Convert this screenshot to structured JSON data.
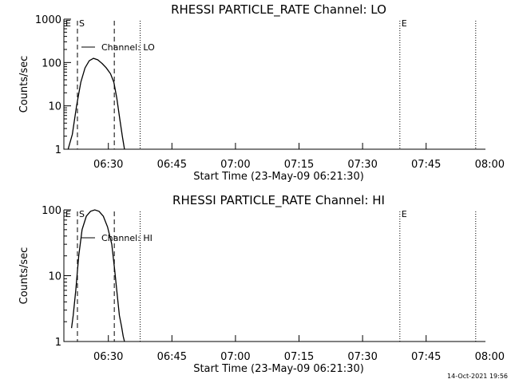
{
  "footer_timestamp": "14-Oct-2021 19:56",
  "colors": {
    "background": "#ffffff",
    "foreground": "#000000"
  },
  "chart_data": [
    {
      "type": "line",
      "title": "RHESSI PARTICLE_RATE Channel: LO",
      "xlabel": "Start Time (23-May-09 06:21:30)",
      "ylabel": "Counts/sec",
      "yscale": "log",
      "ylim": [
        1,
        1000
      ],
      "y_ticks": [
        {
          "value": 1,
          "label": "1"
        },
        {
          "value": 10,
          "label": "10"
        },
        {
          "value": 100,
          "label": "100"
        },
        {
          "value": 1000,
          "label": "1000"
        }
      ],
      "xlim_minutes": [
        -2.0,
        97.5
      ],
      "x_ticks": [
        {
          "value": 8.5,
          "label": "06:30"
        },
        {
          "value": 23.5,
          "label": "06:45"
        },
        {
          "value": 38.5,
          "label": "07:00"
        },
        {
          "value": 53.5,
          "label": "07:15"
        },
        {
          "value": 68.5,
          "label": "07:30"
        },
        {
          "value": 83.5,
          "label": "07:45"
        },
        {
          "value": 98.5,
          "label": "08:00"
        }
      ],
      "legend": {
        "position": "top-left",
        "entries": [
          "Channel: LO"
        ]
      },
      "markers": [
        {
          "label": "E",
          "minute": -2.0,
          "style": "dotted"
        },
        {
          "label": "S",
          "minute": 1.2,
          "style": "dashed"
        },
        {
          "label": "",
          "minute": 9.9,
          "style": "dashed"
        },
        {
          "label": "",
          "minute": 16.0,
          "style": "dotted"
        },
        {
          "label": "E",
          "minute": 77.3,
          "style": "dotted"
        },
        {
          "label": "",
          "minute": 95.2,
          "style": "dotted"
        }
      ],
      "series": [
        {
          "name": "Channel: LO",
          "x": [
            -1.0,
            0.0,
            1.0,
            2.0,
            3.0,
            4.0,
            5.0,
            6.0,
            7.0,
            8.0,
            9.0,
            9.8,
            10.5,
            11.2,
            11.8,
            12.3
          ],
          "values": [
            1.0,
            2.2,
            10,
            35,
            75,
            110,
            125,
            115,
            95,
            75,
            55,
            35,
            15,
            5,
            2,
            1.0
          ]
        }
      ]
    },
    {
      "type": "line",
      "title": "RHESSI PARTICLE_RATE Channel: HI",
      "xlabel": "Start Time (23-May-09 06:21:30)",
      "ylabel": "Counts/sec",
      "yscale": "log",
      "ylim": [
        1,
        100
      ],
      "y_ticks": [
        {
          "value": 1,
          "label": "1"
        },
        {
          "value": 10,
          "label": "10"
        },
        {
          "value": 100,
          "label": "100"
        }
      ],
      "xlim_minutes": [
        -2.0,
        97.5
      ],
      "x_ticks": [
        {
          "value": 8.5,
          "label": "06:30"
        },
        {
          "value": 23.5,
          "label": "06:45"
        },
        {
          "value": 38.5,
          "label": "07:00"
        },
        {
          "value": 53.5,
          "label": "07:15"
        },
        {
          "value": 68.5,
          "label": "07:30"
        },
        {
          "value": 83.5,
          "label": "07:45"
        },
        {
          "value": 98.5,
          "label": "08:00"
        }
      ],
      "legend": {
        "position": "top-left",
        "entries": [
          "Channel: HI"
        ]
      },
      "markers": [
        {
          "label": "E",
          "minute": -2.0,
          "style": "dotted"
        },
        {
          "label": "S",
          "minute": 1.2,
          "style": "dashed"
        },
        {
          "label": "",
          "minute": 9.9,
          "style": "dashed"
        },
        {
          "label": "",
          "minute": 16.0,
          "style": "dotted"
        },
        {
          "label": "E",
          "minute": 77.3,
          "style": "dotted"
        },
        {
          "label": "",
          "minute": 95.2,
          "style": "dotted"
        }
      ],
      "series": [
        {
          "name": "Channel: HI",
          "x": [
            -0.2,
            0.2,
            0.8,
            1.5,
            2.3,
            3.3,
            4.3,
            5.3,
            6.3,
            7.3,
            8.3,
            9.3,
            10.0,
            10.6,
            11.1,
            11.6,
            12.0,
            12.3
          ],
          "values": [
            1.6,
            2.5,
            6,
            20,
            50,
            80,
            95,
            100,
            95,
            80,
            55,
            30,
            12,
            5,
            2.5,
            1.7,
            1.2,
            1.0
          ]
        }
      ]
    }
  ]
}
